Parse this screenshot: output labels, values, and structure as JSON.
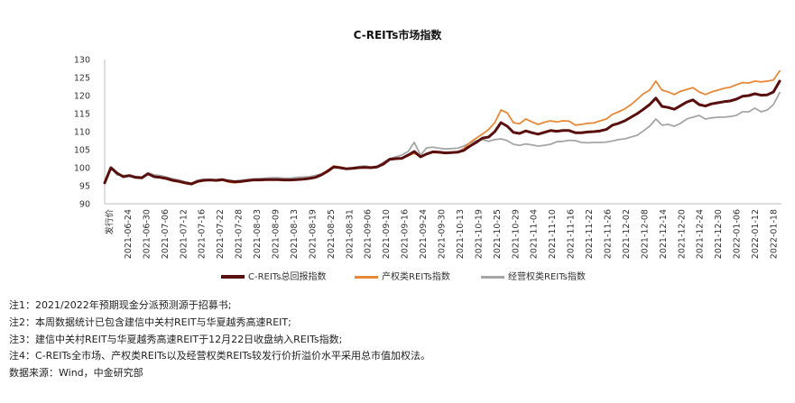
{
  "chart_data": {
    "type": "line",
    "title": "C-REITs市场指数",
    "ylim": [
      90,
      130
    ],
    "yticks": [
      90,
      95,
      100,
      105,
      110,
      115,
      120,
      125,
      130
    ],
    "x_tick_labels": [
      "发行价",
      "2021-06-24",
      "2021-06-30",
      "2021-07-06",
      "2021-07-12",
      "2021-07-16",
      "2021-07-22",
      "2021-07-28",
      "2021-08-03",
      "2021-08-09",
      "2021-08-13",
      "2021-08-19",
      "2021-08-25",
      "2021-08-31",
      "2021-09-06",
      "2021-09-10",
      "2021-09-16",
      "2021-09-24",
      "2021-09-30",
      "2021-10-13",
      "2021-10-19",
      "2021-10-25",
      "2021-10-29",
      "2021-11-04",
      "2021-11-10",
      "2021-11-16",
      "2021-11-22",
      "2021-11-26",
      "2021-12-02",
      "2021-12-08",
      "2021-12-14",
      "2021-12-20",
      "2021-12-24",
      "2021-12-30",
      "2022-01-06",
      "2022-01-12",
      "2022-01-18"
    ],
    "grid": false,
    "legend_position": "bottom",
    "series": [
      {
        "name": "C-REITs总回报指数",
        "color": "#5a0f0f",
        "values": [
          95.8,
          100,
          98.5,
          97.5,
          97.8,
          97.3,
          97.2,
          98.3,
          97.5,
          97.3,
          97.0,
          96.5,
          96.2,
          95.8,
          95.5,
          96.2,
          96.5,
          96.6,
          96.5,
          96.7,
          96.3,
          96.1,
          96.2,
          96.4,
          96.6,
          96.6,
          96.7,
          96.7,
          96.7,
          96.6,
          96.6,
          96.7,
          96.8,
          97.0,
          97.3,
          98.0,
          99.0,
          100.2,
          100.0,
          99.7,
          99.8,
          100.0,
          100.1,
          100.0,
          100.2,
          101.0,
          102.3,
          102.5,
          102.6,
          103.5,
          104.5,
          103.0,
          103.8,
          104.4,
          104.3,
          104.1,
          104.2,
          104.3,
          104.8,
          106.0,
          107.0,
          108.2,
          108.5,
          110.0,
          112.5,
          111.5,
          109.8,
          109.5,
          110.2,
          109.7,
          109.3,
          109.8,
          110.3,
          110.1,
          110.3,
          110.3,
          109.7,
          109.7,
          109.9,
          110.0,
          110.2,
          110.6,
          111.8,
          112.3,
          113.0,
          114.0,
          115.0,
          116.2,
          117.5,
          119.3,
          117.0,
          116.7,
          116.2,
          117.2,
          118.2,
          118.8,
          117.5,
          117.1,
          117.7,
          118.0,
          118.3,
          118.5,
          119.0,
          119.8,
          120.0,
          120.5,
          120.1,
          120.2,
          121.0,
          124.0
        ]
      },
      {
        "name": "产权类REITs指数",
        "color": "#e8893a",
        "values": [
          95.8,
          100,
          98.6,
          97.5,
          97.8,
          97.3,
          97.2,
          98.3,
          97.5,
          97.2,
          96.8,
          96.3,
          96.0,
          95.6,
          95.3,
          96.0,
          96.4,
          96.5,
          96.3,
          96.5,
          96.0,
          95.8,
          96.0,
          96.3,
          96.5,
          96.5,
          96.6,
          96.7,
          96.7,
          96.6,
          96.6,
          96.7,
          96.8,
          97.1,
          97.4,
          98.2,
          99.3,
          100.5,
          100.2,
          99.8,
          99.9,
          100.0,
          100.1,
          100.0,
          100.2,
          101.0,
          102.3,
          102.5,
          102.6,
          103.3,
          104.0,
          103.0,
          103.8,
          104.2,
          104.1,
          104.0,
          104.1,
          104.3,
          105.3,
          107.0,
          108.2,
          109.3,
          110.6,
          112.5,
          116.0,
          115.2,
          112.5,
          112.2,
          113.5,
          112.7,
          112.0,
          112.6,
          113.0,
          112.7,
          113.0,
          112.9,
          111.8,
          112.0,
          112.3,
          112.4,
          113.0,
          113.5,
          114.8,
          115.5,
          116.3,
          117.5,
          119.0,
          120.5,
          121.5,
          124.0,
          121.5,
          121.0,
          120.3,
          121.2,
          121.7,
          122.2,
          121.0,
          120.3,
          121.0,
          121.5,
          122.0,
          122.3,
          123.0,
          123.6,
          123.5,
          124.0,
          123.8,
          124.0,
          124.3,
          126.8
        ]
      },
      {
        "name": "经营权类REITs指数",
        "color": "#a6a6a6",
        "values": [
          95.8,
          100,
          98.0,
          97.8,
          98.0,
          97.6,
          97.4,
          98.6,
          98.0,
          97.8,
          97.4,
          96.9,
          96.6,
          96.1,
          95.7,
          96.5,
          96.8,
          96.7,
          96.6,
          96.8,
          96.5,
          96.3,
          96.5,
          96.7,
          96.9,
          97.0,
          97.1,
          97.2,
          97.2,
          97.1,
          97.1,
          97.3,
          97.4,
          97.5,
          97.8,
          98.3,
          99.2,
          100.5,
          100.0,
          99.8,
          100.0,
          100.3,
          100.5,
          100.2,
          100.4,
          101.5,
          102.5,
          103.0,
          103.5,
          104.5,
          107.0,
          103.5,
          105.5,
          105.7,
          105.4,
          105.2,
          105.3,
          105.4,
          106.0,
          106.8,
          107.5,
          107.8,
          107.3,
          107.8,
          108.0,
          107.5,
          106.5,
          106.2,
          106.6,
          106.3,
          106.0,
          106.2,
          106.5,
          107.2,
          107.3,
          107.6,
          107.5,
          107.0,
          106.9,
          107.0,
          107.0,
          107.1,
          107.4,
          107.8,
          108.0,
          108.5,
          109.0,
          110.2,
          111.5,
          113.5,
          111.8,
          112.0,
          111.5,
          112.3,
          113.5,
          114.0,
          114.5,
          113.5,
          113.8,
          114.0,
          114.0,
          114.2,
          114.5,
          115.5,
          115.5,
          116.5,
          115.5,
          116.0,
          117.5,
          120.8
        ]
      }
    ]
  },
  "notes": [
    "注1：2021/2022年预期现金分派预测源于招募书;",
    "注2：本周数据统计已包含建信中关村REIT与华夏越秀高速REIT;",
    "注3：建信中关村REIT与华夏越秀高速REIT于12月22日收盘纳入REITs指数;",
    "注4：C-REITs全市场、产权类REITs以及经营权类REITs较发行价折溢价水平采用总市值加权法。",
    "数据来源：Wind，中金研究部"
  ]
}
